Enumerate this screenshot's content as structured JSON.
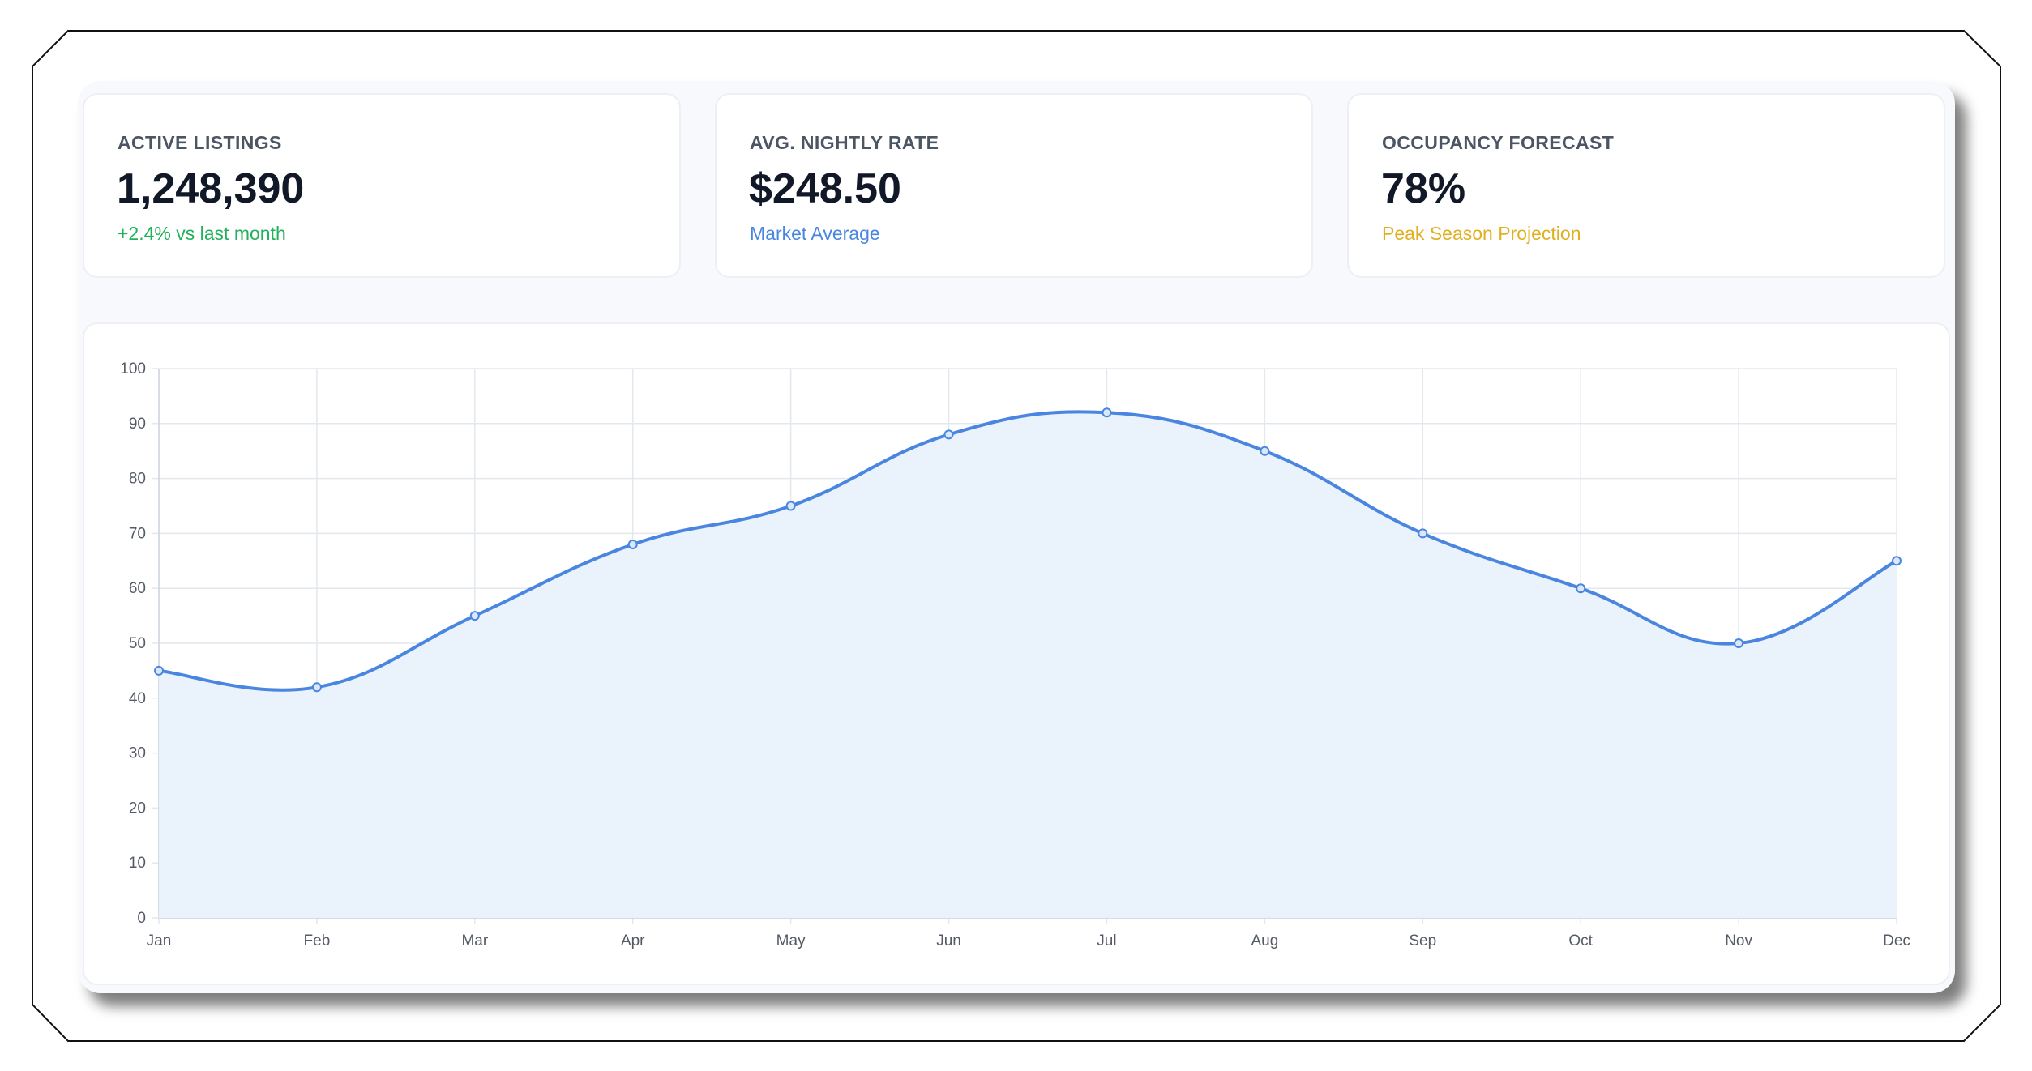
{
  "colors": {
    "line": "#4a86e0",
    "fill": "#e9f1fc",
    "grid": "#e3e7ee",
    "positive": "#22b15a",
    "info": "#4a86e0",
    "warning": "#e0b021"
  },
  "cards": [
    {
      "label": "ACTIVE LISTINGS",
      "value": "1,248,390",
      "sub": "+2.4% vs last month"
    },
    {
      "label": "AVG. NIGHTLY RATE",
      "value": "$248.50",
      "sub": "Market Average"
    },
    {
      "label": "OCCUPANCY FORECAST",
      "value": "78%",
      "sub": "Peak Season Projection"
    }
  ],
  "chart_data": {
    "type": "line",
    "categories": [
      "Jan",
      "Feb",
      "Mar",
      "Apr",
      "May",
      "Jun",
      "Jul",
      "Aug",
      "Sep",
      "Oct",
      "Nov",
      "Dec"
    ],
    "values": [
      45,
      42,
      55,
      68,
      75,
      88,
      92,
      85,
      70,
      60,
      50,
      65
    ],
    "ylim": [
      0,
      100
    ],
    "yticks": [
      "0",
      "10",
      "20",
      "30",
      "40",
      "50",
      "60",
      "70",
      "80",
      "90",
      "100"
    ],
    "title": "",
    "xlabel": "",
    "ylabel": "",
    "area_fill": true,
    "smooth": true,
    "grid": true,
    "legend": "none"
  }
}
